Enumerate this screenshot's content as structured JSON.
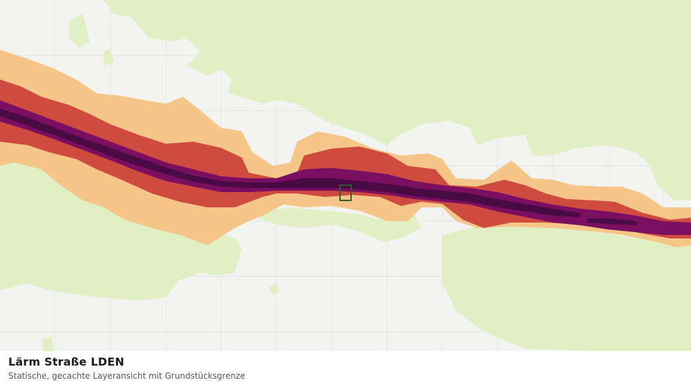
{
  "caption": {
    "title": "Lärm Straße LDEN",
    "subtitle": "Statische, gecachte Layeransicht mit Grundstücksgrenze"
  },
  "map": {
    "background_color": "#f3f4f2",
    "grid_color": "#dfe2df",
    "noise_classes": [
      {
        "name": "zone-lightgreen",
        "color": "#e1f0c4"
      },
      {
        "name": "zone-orange",
        "color": "#f5c688"
      },
      {
        "name": "zone-red",
        "color": "#cf4a3f"
      },
      {
        "name": "zone-magenta",
        "color": "#7a0f62"
      },
      {
        "name": "zone-darkpurple",
        "color": "#4a0b45"
      }
    ],
    "parcel_boundary_color": "#2f5e2f"
  }
}
